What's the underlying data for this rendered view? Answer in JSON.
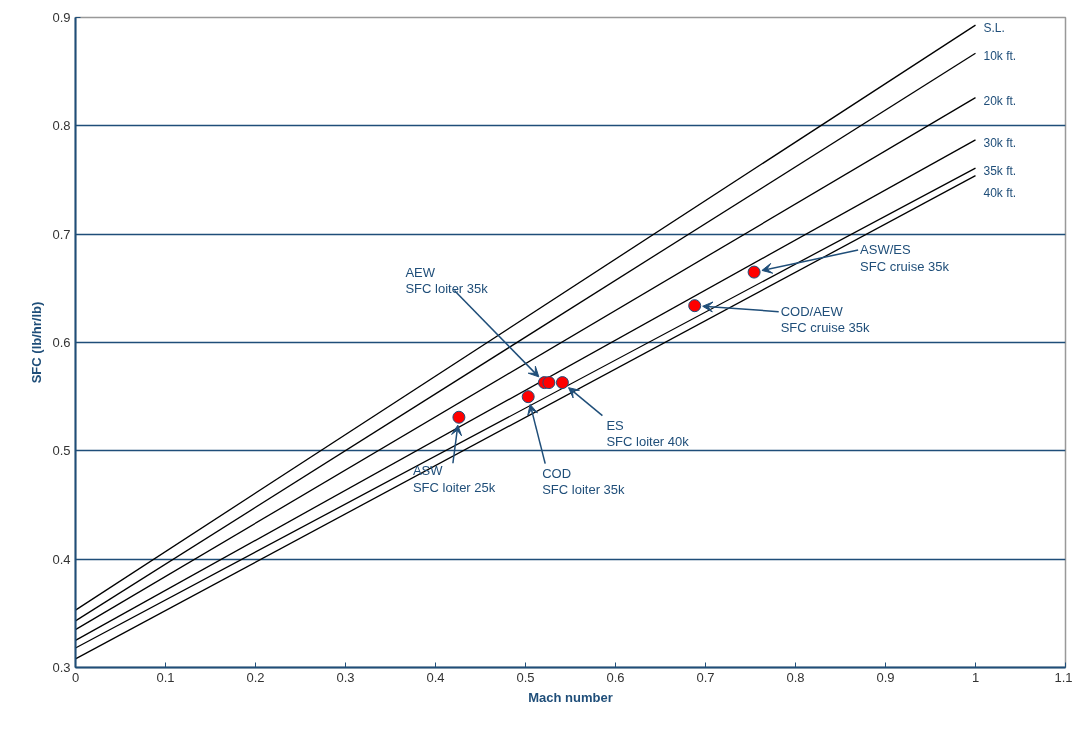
{
  "chart_data": {
    "type": "line",
    "xlabel": "Mach number",
    "ylabel": "SFC (lb/hr/lb)",
    "xlim": [
      0,
      1.1
    ],
    "ylim": [
      0.3,
      0.9
    ],
    "xticks": [
      0,
      0.1,
      0.2,
      0.3,
      0.4,
      0.5,
      0.6,
      0.7,
      0.8,
      0.9,
      1,
      1.1
    ],
    "yticks": [
      0.3,
      0.4,
      0.5,
      0.6,
      0.7,
      0.8,
      0.9
    ],
    "grid": "y",
    "line_style": "solid",
    "series": [
      {
        "name": "S.L.",
        "color": "#000000",
        "x": [
          0,
          1
        ],
        "values": [
          0.353,
          0.893
        ]
      },
      {
        "name": "10k ft.",
        "color": "#000000",
        "x": [
          0,
          1
        ],
        "values": [
          0.343,
          0.867
        ]
      },
      {
        "name": "20k ft.",
        "color": "#000000",
        "x": [
          0,
          1
        ],
        "values": [
          0.335,
          0.826
        ]
      },
      {
        "name": "30k ft.",
        "color": "#000000",
        "x": [
          0,
          1
        ],
        "values": [
          0.325,
          0.787
        ]
      },
      {
        "name": "35k ft.",
        "color": "#000000",
        "x": [
          0,
          1
        ],
        "values": [
          0.318,
          0.761
        ]
      },
      {
        "name": "40k ft.",
        "color": "#000000",
        "x": [
          0,
          1
        ],
        "values": [
          0.308,
          0.754
        ]
      },
      {
        "type": "scatter",
        "marker": "circle",
        "color": "#ff0000",
        "x": [
          0.426,
          0.503,
          0.521,
          0.526,
          0.541,
          0.688,
          0.754
        ],
        "values": [
          0.531,
          0.55,
          0.563,
          0.563,
          0.563,
          0.634,
          0.665
        ]
      }
    ],
    "annotations": [
      {
        "text": "AEW\nSFC loiter 35k",
        "x": 0.521,
        "y": 0.563
      },
      {
        "text": "ASW\nSFC loiter 25k",
        "x": 0.426,
        "y": 0.531
      },
      {
        "text": "COD\nSFC loiter  35k",
        "x": 0.503,
        "y": 0.55
      },
      {
        "text": "ES\nSFC loiter 40k",
        "x": 0.541,
        "y": 0.563
      },
      {
        "text": "COD/AEW\nSFC cruise 35k",
        "x": 0.688,
        "y": 0.634
      },
      {
        "text": "ASW/ES\nSFC cruise 35k",
        "x": 0.754,
        "y": 0.665
      }
    ]
  }
}
